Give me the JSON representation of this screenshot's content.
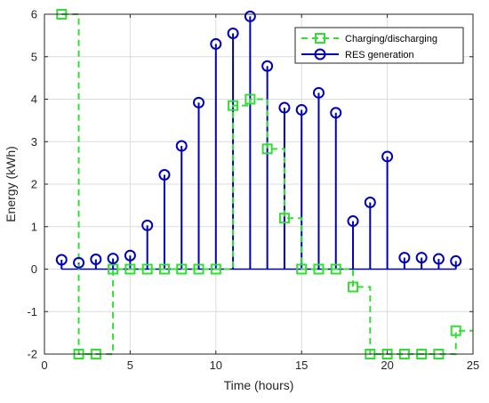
{
  "chart_data": {
    "type": "line",
    "xlabel": "Time (hours)",
    "ylabel": "Energy (kWh)",
    "xlim": [
      0,
      25
    ],
    "ylim": [
      -2,
      6
    ],
    "xticks": [
      0,
      5,
      10,
      15,
      20,
      25
    ],
    "yticks": [
      -2,
      -1,
      0,
      1,
      2,
      3,
      4,
      5,
      6
    ],
    "grid": true,
    "legend_position": "top-right",
    "series": [
      {
        "name": "Charging/discharging",
        "style": "stairs-dashed-square",
        "color": "#33dd33",
        "x": [
          1,
          2,
          3,
          4,
          5,
          6,
          7,
          8,
          9,
          10,
          11,
          12,
          13,
          14,
          15,
          16,
          17,
          18,
          19,
          20,
          21,
          22,
          23,
          24
        ],
        "values": [
          6,
          -2,
          -2,
          0,
          0,
          0,
          0,
          0,
          0,
          0,
          3.85,
          4,
          2.83,
          1.2,
          0,
          0,
          0,
          -0.42,
          -2,
          -2,
          -2,
          -2,
          -2,
          -1.45
        ]
      },
      {
        "name": "RES generation",
        "style": "stem-circle",
        "color": "#0000bb",
        "x": [
          1,
          2,
          3,
          4,
          5,
          6,
          7,
          8,
          9,
          10,
          11,
          12,
          13,
          14,
          15,
          16,
          17,
          18,
          19,
          20,
          21,
          22,
          23,
          24
        ],
        "values": [
          0.22,
          0.15,
          0.23,
          0.25,
          0.32,
          1.03,
          2.22,
          2.9,
          3.92,
          5.3,
          5.55,
          5.95,
          4.78,
          3.8,
          3.75,
          4.15,
          3.68,
          1.13,
          1.57,
          2.65,
          0.27,
          0.27,
          0.24,
          0.19
        ]
      }
    ]
  }
}
